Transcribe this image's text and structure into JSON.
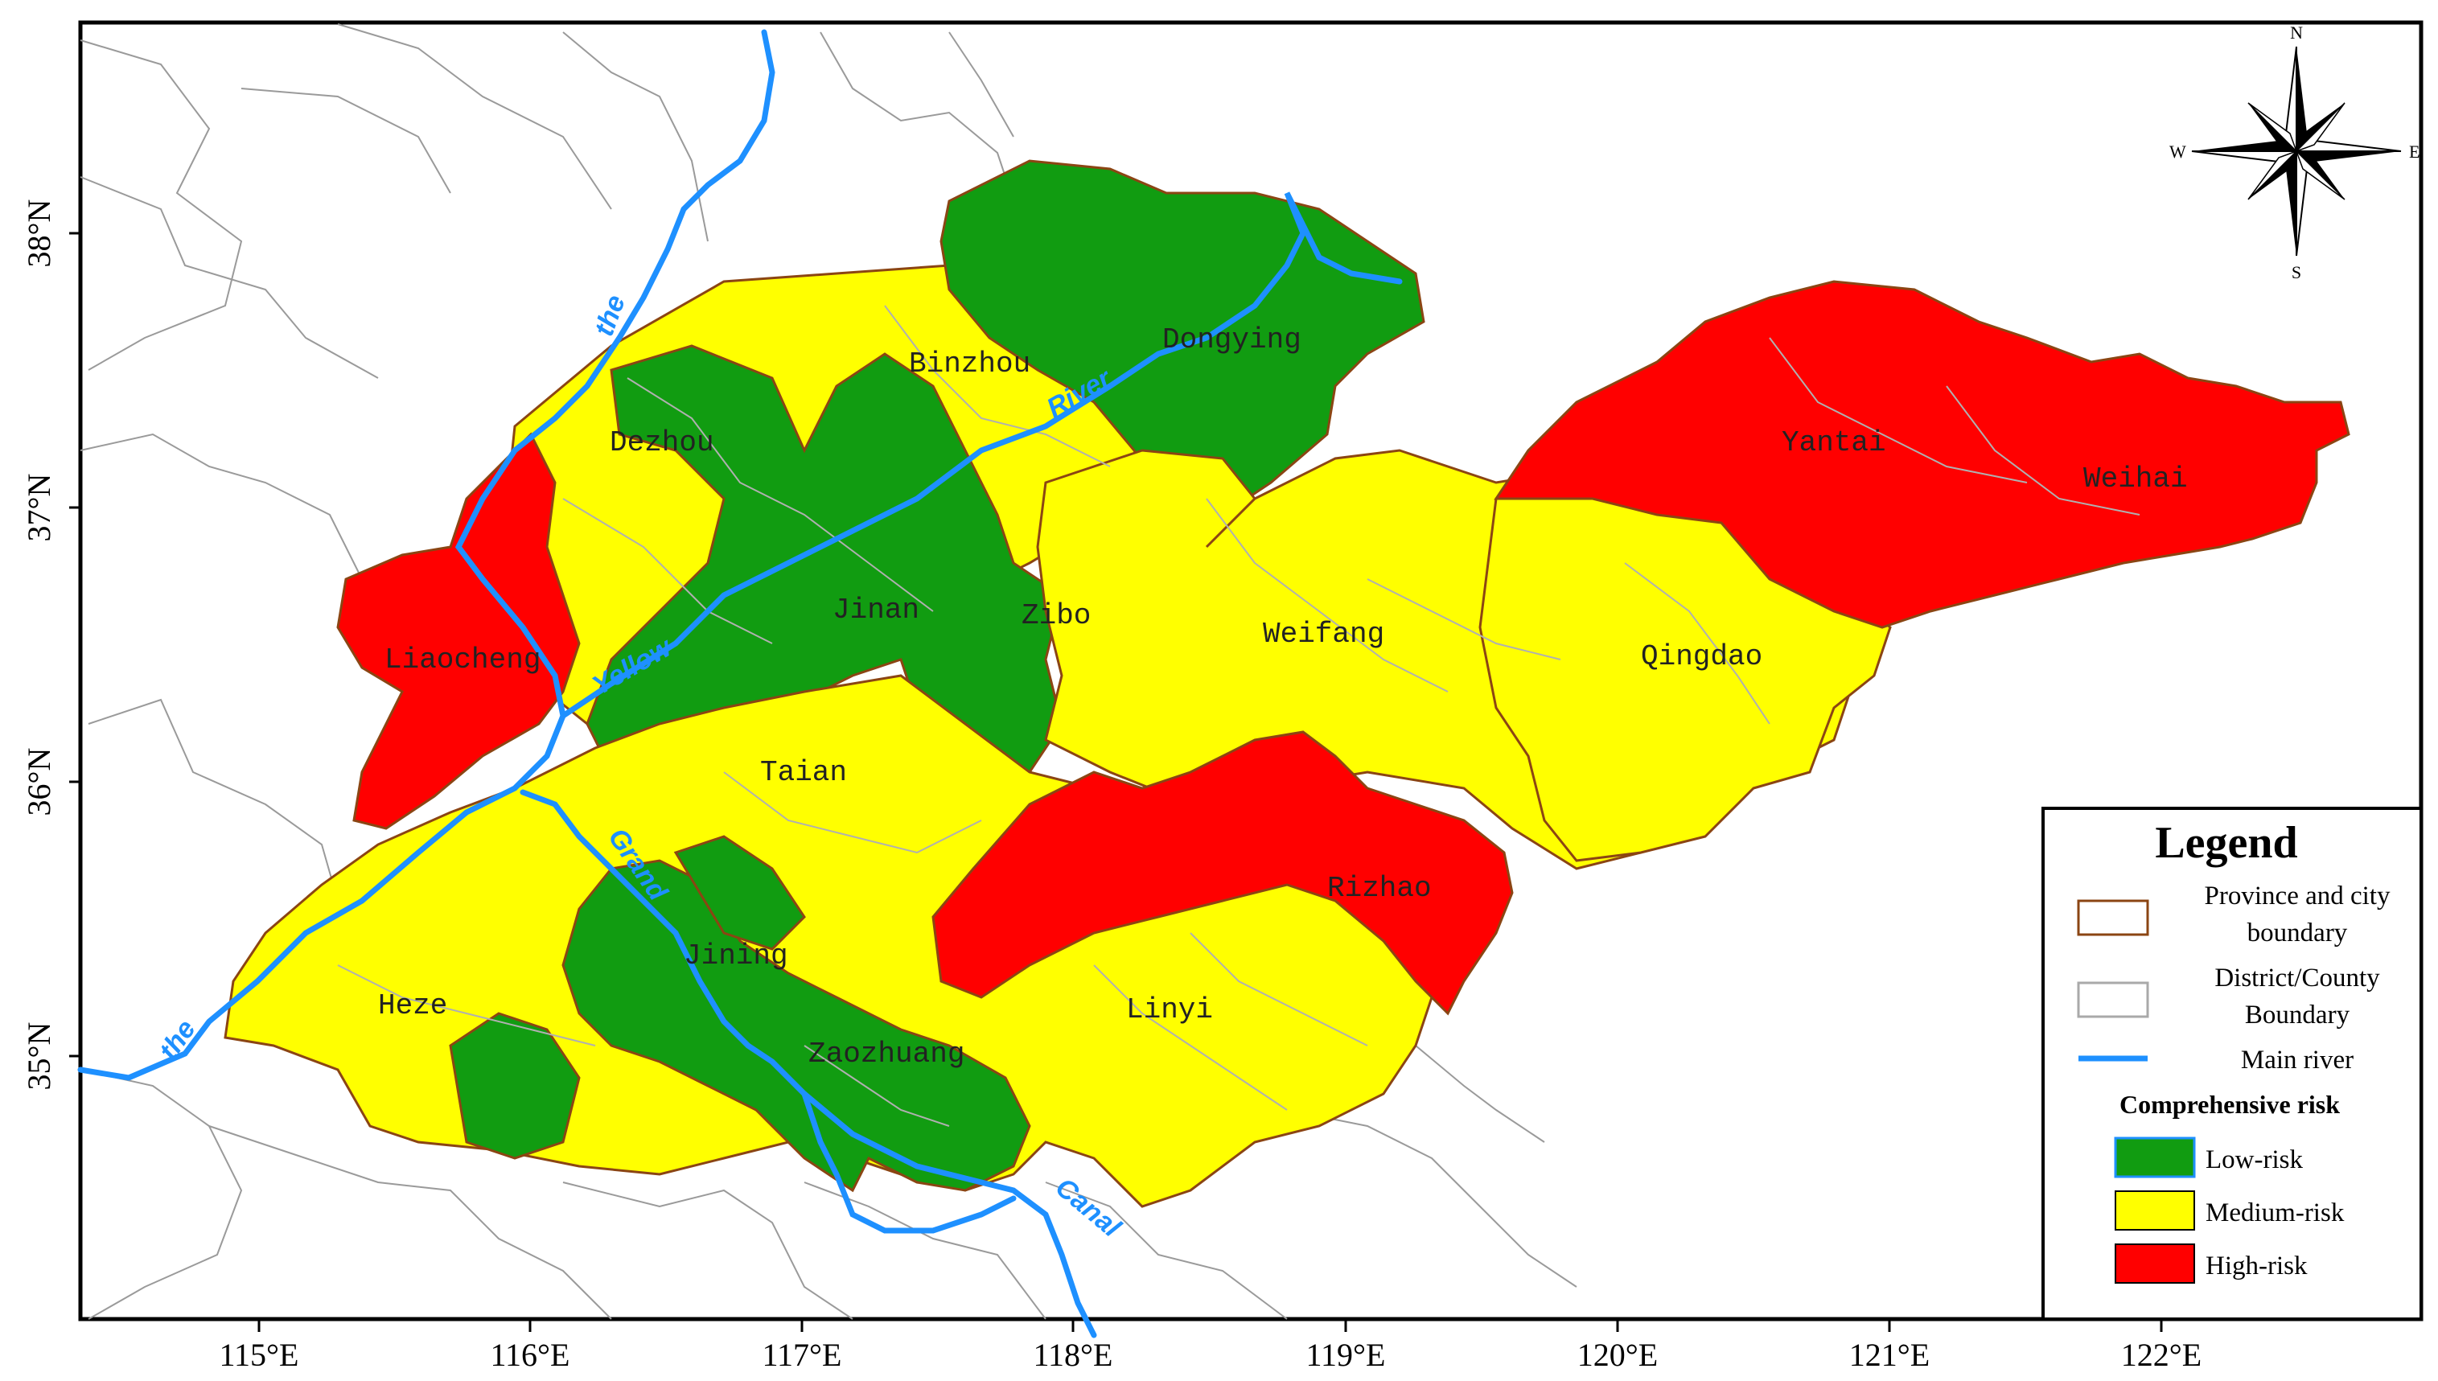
{
  "axes": {
    "longitude_ticks": [
      "115°E",
      "116°E",
      "117°E",
      "118°E",
      "119°E",
      "120°E",
      "121°E",
      "122°E"
    ],
    "latitude_ticks": [
      "38°N",
      "37°N",
      "36°N",
      "35°N"
    ]
  },
  "cities": [
    {
      "name": "Binzhou"
    },
    {
      "name": "Dongying"
    },
    {
      "name": "Dezhou"
    },
    {
      "name": "Yantai"
    },
    {
      "name": "Weihai"
    },
    {
      "name": "Liaocheng"
    },
    {
      "name": "Jinan"
    },
    {
      "name": "Zibo"
    },
    {
      "name": "Weifang"
    },
    {
      "name": "Qingdao"
    },
    {
      "name": "Taian"
    },
    {
      "name": "Rizhao"
    },
    {
      "name": "Jining"
    },
    {
      "name": "Heze"
    },
    {
      "name": "Linyi"
    },
    {
      "name": "Zaozhuang"
    }
  ],
  "river_labels": {
    "the_north": "the",
    "yellow": "Yellow",
    "river": "River",
    "the_south": "the",
    "grand": "Grand",
    "canal": "Canal"
  },
  "compass": {
    "n": "N",
    "s": "S",
    "e": "E",
    "w": "W"
  },
  "legend": {
    "title": "Legend",
    "province_line1": "Province and city",
    "province_line2": "boundary",
    "district_line1": "District/County",
    "district_line2": "Boundary",
    "river": "Main river",
    "subtitle": "Comprehensive risk",
    "low": "Low-risk",
    "medium": "Medium-risk",
    "high": "High-risk"
  },
  "colors": {
    "low": "#119c11",
    "medium": "#ffff00",
    "high": "#ff0000",
    "province_boundary": "#8b4513",
    "district_boundary": "#a9a9a9",
    "river": "#1e90ff"
  }
}
